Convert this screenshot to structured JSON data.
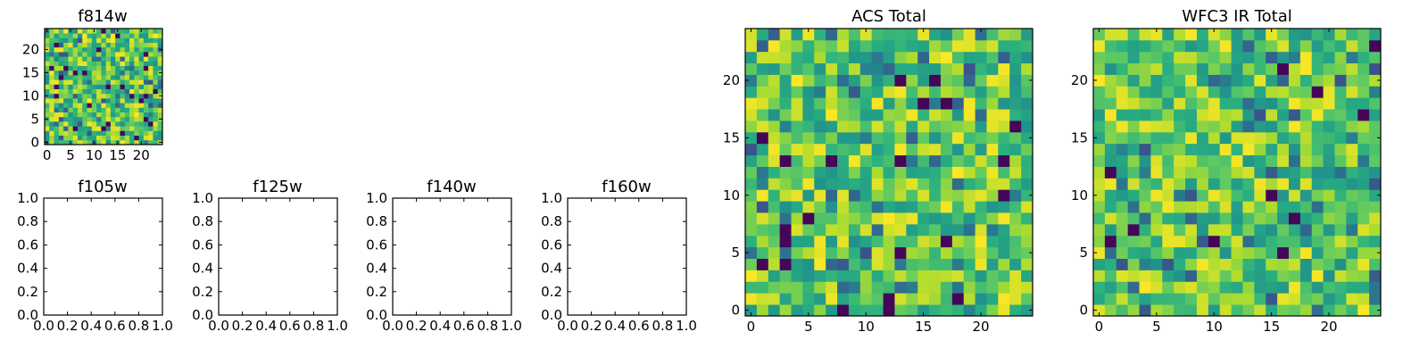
{
  "colormap": "viridis",
  "colors": {
    "low": "#440154",
    "mid": "#21918c",
    "high": "#fde725",
    "axis": "#000000"
  },
  "chart_data": [
    {
      "id": "f814w",
      "type": "heatmap",
      "title": "f814w",
      "xlabel": "",
      "ylabel": "",
      "xlim": [
        -0.5,
        24.5
      ],
      "ylim": [
        -0.5,
        24.5
      ],
      "xticks": [
        "0",
        "5",
        "10",
        "15",
        "20"
      ],
      "yticks": [
        "0",
        "5",
        "10",
        "15",
        "20"
      ],
      "grid_shape": [
        25,
        25
      ],
      "seed": 814
    },
    {
      "id": "f105w",
      "type": "heatmap",
      "title": "f105w",
      "empty": true,
      "xlim": [
        0,
        1
      ],
      "ylim": [
        0,
        1
      ],
      "xticks": [
        "0.0",
        "0.2",
        "0.4",
        "0.6",
        "0.8",
        "1.0"
      ],
      "yticks": [
        "0.0",
        "0.2",
        "0.4",
        "0.6",
        "0.8",
        "1.0"
      ]
    },
    {
      "id": "f125w",
      "type": "heatmap",
      "title": "f125w",
      "empty": true,
      "xlim": [
        0,
        1
      ],
      "ylim": [
        0,
        1
      ],
      "xticks": [
        "0.0",
        "0.2",
        "0.4",
        "0.6",
        "0.8",
        "1.0"
      ],
      "yticks": [
        "0.0",
        "0.2",
        "0.4",
        "0.6",
        "0.8",
        "1.0"
      ]
    },
    {
      "id": "f140w",
      "type": "heatmap",
      "title": "f140w",
      "empty": true,
      "xlim": [
        0,
        1
      ],
      "ylim": [
        0,
        1
      ],
      "xticks": [
        "0.0",
        "0.2",
        "0.4",
        "0.6",
        "0.8",
        "1.0"
      ],
      "yticks": [
        "0.0",
        "0.2",
        "0.4",
        "0.6",
        "0.8",
        "1.0"
      ]
    },
    {
      "id": "f160w",
      "type": "heatmap",
      "title": "f160w",
      "empty": true,
      "xlim": [
        0,
        1
      ],
      "ylim": [
        0,
        1
      ],
      "xticks": [
        "0.0",
        "0.2",
        "0.4",
        "0.6",
        "0.8",
        "1.0"
      ],
      "yticks": [
        "0.0",
        "0.2",
        "0.4",
        "0.6",
        "0.8",
        "1.0"
      ]
    },
    {
      "id": "acs_total",
      "type": "heatmap",
      "title": "ACS Total",
      "xlabel": "",
      "ylabel": "",
      "xlim": [
        -0.5,
        24.5
      ],
      "ylim": [
        -0.5,
        24.5
      ],
      "xticks": [
        "0",
        "5",
        "10",
        "15",
        "20"
      ],
      "yticks": [
        "0",
        "5",
        "10",
        "15",
        "20"
      ],
      "grid_shape": [
        25,
        25
      ],
      "seed": 1001
    },
    {
      "id": "wfc3_ir_total",
      "type": "heatmap",
      "title": "WFC3 IR Total",
      "xlabel": "",
      "ylabel": "",
      "xlim": [
        -0.5,
        24.5
      ],
      "ylim": [
        -0.5,
        24.5
      ],
      "xticks": [
        "0",
        "5",
        "10",
        "15",
        "20"
      ],
      "yticks": [
        "0",
        "5",
        "10",
        "15",
        "20"
      ],
      "grid_shape": [
        25,
        25
      ],
      "seed": 3160
    }
  ]
}
